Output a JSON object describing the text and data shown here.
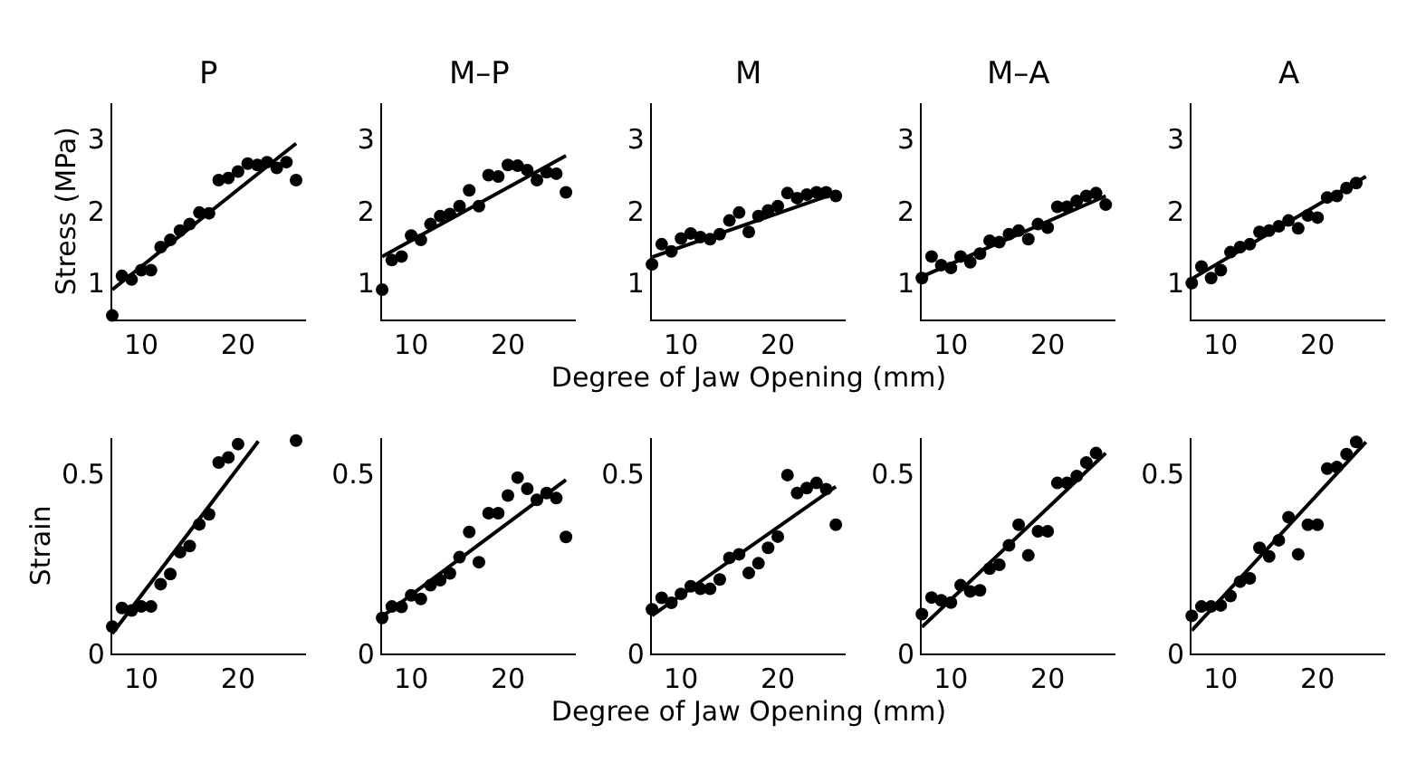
{
  "chart_data": [
    {
      "type": "scatter",
      "title": "P",
      "ylabel": "Stress (MPa)",
      "xlim": [
        7,
        27
      ],
      "ylim": [
        0.5,
        3.5
      ],
      "xticks": [
        10,
        20
      ],
      "yticks": [
        1,
        2,
        3
      ],
      "line_style": "solid",
      "series": [
        {
          "marker": "circle",
          "color": "#000000",
          "x": [
            7,
            8,
            9,
            10,
            11,
            12,
            13,
            14,
            15,
            16,
            17,
            18,
            19,
            20,
            21,
            22,
            23,
            24,
            25,
            26
          ],
          "values": [
            0.55,
            1.1,
            1.05,
            1.18,
            1.18,
            1.5,
            1.6,
            1.73,
            1.82,
            1.98,
            1.97,
            2.43,
            2.46,
            2.55,
            2.66,
            2.64,
            2.68,
            2.6,
            2.68,
            2.43
          ]
        },
        {
          "type": "line",
          "marker": "none",
          "color": "#000000",
          "x": [
            7,
            26
          ],
          "values": [
            0.91,
            2.94
          ]
        }
      ]
    },
    {
      "type": "scatter",
      "title": "M–P",
      "xlim": [
        7,
        27
      ],
      "ylim": [
        0.5,
        3.5
      ],
      "xticks": [
        10,
        20
      ],
      "yticks": [
        1,
        2,
        3
      ],
      "line_style": "solid",
      "series": [
        {
          "marker": "circle",
          "color": "#000000",
          "x": [
            7,
            8,
            9,
            10,
            11,
            12,
            13,
            14,
            15,
            16,
            17,
            18,
            19,
            20,
            21,
            22,
            23,
            24,
            25,
            26
          ],
          "values": [
            0.91,
            1.32,
            1.37,
            1.66,
            1.6,
            1.82,
            1.93,
            1.96,
            2.07,
            2.29,
            2.07,
            2.5,
            2.48,
            2.64,
            2.63,
            2.57,
            2.43,
            2.54,
            2.52,
            2.26
          ]
        },
        {
          "type": "line",
          "marker": "none",
          "color": "#000000",
          "x": [
            7,
            26
          ],
          "values": [
            1.37,
            2.77
          ]
        }
      ]
    },
    {
      "type": "scatter",
      "title": "M",
      "xlabel": "Degree of Jaw Opening (mm)",
      "xlim": [
        7,
        27
      ],
      "ylim": [
        0.5,
        3.5
      ],
      "xticks": [
        10,
        20
      ],
      "yticks": [
        1,
        2,
        3
      ],
      "line_style": "solid",
      "series": [
        {
          "marker": "circle",
          "color": "#000000",
          "x": [
            7,
            8,
            9,
            10,
            11,
            12,
            13,
            14,
            15,
            16,
            17,
            18,
            19,
            20,
            21,
            22,
            23,
            24,
            25,
            26
          ],
          "values": [
            1.26,
            1.54,
            1.44,
            1.62,
            1.69,
            1.64,
            1.61,
            1.68,
            1.87,
            1.98,
            1.71,
            1.93,
            2.01,
            2.07,
            2.25,
            2.18,
            2.23,
            2.26,
            2.26,
            2.21
          ]
        },
        {
          "type": "line",
          "marker": "none",
          "color": "#000000",
          "x": [
            7,
            26
          ],
          "values": [
            1.36,
            2.25
          ]
        }
      ]
    },
    {
      "type": "scatter",
      "title": "M–A",
      "xlim": [
        7,
        27
      ],
      "ylim": [
        0.5,
        3.5
      ],
      "xticks": [
        10,
        20
      ],
      "yticks": [
        1,
        2,
        3
      ],
      "line_style": "solid",
      "series": [
        {
          "marker": "circle",
          "color": "#000000",
          "x": [
            7,
            8,
            9,
            10,
            11,
            12,
            13,
            14,
            15,
            16,
            17,
            18,
            19,
            20,
            21,
            22,
            23,
            24,
            25,
            26
          ],
          "values": [
            1.07,
            1.37,
            1.25,
            1.21,
            1.37,
            1.29,
            1.41,
            1.59,
            1.57,
            1.68,
            1.73,
            1.61,
            1.82,
            1.77,
            2.06,
            2.06,
            2.14,
            2.21,
            2.25,
            2.09
          ]
        },
        {
          "type": "line",
          "marker": "none",
          "color": "#000000",
          "x": [
            7,
            26
          ],
          "values": [
            1.09,
            2.21
          ]
        }
      ]
    },
    {
      "type": "scatter",
      "title": "A",
      "xlim": [
        7,
        27
      ],
      "ylim": [
        0.5,
        3.5
      ],
      "xticks": [
        10,
        20
      ],
      "yticks": [
        1,
        2,
        3
      ],
      "line_style": "solid",
      "series": [
        {
          "marker": "circle",
          "color": "#000000",
          "x": [
            7,
            8,
            9,
            10,
            11,
            12,
            13,
            14,
            15,
            16,
            17,
            18,
            19,
            20,
            21,
            22,
            23,
            24
          ],
          "values": [
            1.0,
            1.23,
            1.07,
            1.18,
            1.43,
            1.5,
            1.54,
            1.71,
            1.73,
            1.79,
            1.87,
            1.76,
            1.94,
            1.91,
            2.19,
            2.21,
            2.32,
            2.39
          ]
        },
        {
          "type": "line",
          "marker": "none",
          "color": "#000000",
          "x": [
            7,
            25
          ],
          "values": [
            1.06,
            2.48
          ]
        }
      ]
    },
    {
      "type": "scatter",
      "ylabel": "Strain",
      "xlim": [
        7,
        27
      ],
      "ylim": [
        0,
        0.6
      ],
      "xticks": [
        10,
        20
      ],
      "yticks": [
        0,
        0.5
      ],
      "line_style": "solid",
      "series": [
        {
          "marker": "circle",
          "color": "#000000",
          "x": [
            7,
            8,
            9,
            10,
            11,
            12,
            13,
            14,
            15,
            16,
            17,
            18,
            19,
            20,
            21,
            22,
            23,
            24,
            25,
            26
          ],
          "values": [
            0.075,
            0.127,
            0.12,
            0.131,
            0.131,
            0.193,
            0.221,
            0.282,
            0.299,
            0.359,
            0.387,
            0.531,
            0.545,
            0.582,
            null,
            null,
            null,
            null,
            null,
            0.592
          ]
        },
        {
          "type": "line",
          "marker": "none",
          "color": "#000000",
          "x": [
            7,
            22.1
          ],
          "values": [
            0.056,
            0.59
          ]
        }
      ]
    },
    {
      "type": "scatter",
      "xlim": [
        7,
        27
      ],
      "ylim": [
        0,
        0.6
      ],
      "xticks": [
        10,
        20
      ],
      "yticks": [
        0,
        0.5
      ],
      "line_style": "solid",
      "series": [
        {
          "marker": "circle",
          "color": "#000000",
          "x": [
            7,
            8,
            9,
            10,
            11,
            12,
            13,
            14,
            15,
            16,
            17,
            18,
            19,
            20,
            21,
            22,
            23,
            24,
            25,
            26
          ],
          "values": [
            0.099,
            0.131,
            0.13,
            0.162,
            0.152,
            0.19,
            0.204,
            0.223,
            0.268,
            0.338,
            0.254,
            0.39,
            0.39,
            0.439,
            0.489,
            0.458,
            0.427,
            0.446,
            0.432,
            0.324
          ]
        },
        {
          "type": "line",
          "marker": "none",
          "color": "#000000",
          "x": [
            7,
            26
          ],
          "values": [
            0.103,
            0.483
          ]
        }
      ]
    },
    {
      "type": "scatter",
      "xlabel": "Degree of Jaw Opening (mm)",
      "xlim": [
        7,
        27
      ],
      "ylim": [
        0,
        0.6
      ],
      "xticks": [
        10,
        20
      ],
      "yticks": [
        0,
        0.5
      ],
      "line_style": "solid",
      "series": [
        {
          "marker": "circle",
          "color": "#000000",
          "x": [
            7,
            8,
            9,
            10,
            11,
            12,
            13,
            14,
            15,
            16,
            17,
            18,
            19,
            20,
            21,
            22,
            23,
            24,
            25,
            26
          ],
          "values": [
            0.123,
            0.155,
            0.141,
            0.166,
            0.187,
            0.18,
            0.18,
            0.206,
            0.266,
            0.276,
            0.224,
            0.251,
            0.294,
            0.325,
            0.496,
            0.446,
            0.46,
            0.474,
            0.457,
            0.358
          ]
        },
        {
          "type": "line",
          "marker": "none",
          "color": "#000000",
          "x": [
            7,
            26
          ],
          "values": [
            0.106,
            0.464
          ]
        }
      ]
    },
    {
      "type": "scatter",
      "xlim": [
        7,
        27
      ],
      "ylim": [
        0,
        0.6
      ],
      "xticks": [
        10,
        20
      ],
      "yticks": [
        0,
        0.5
      ],
      "line_style": "solid",
      "series": [
        {
          "marker": "circle",
          "color": "#000000",
          "x": [
            7,
            8,
            9,
            10,
            11,
            12,
            13,
            14,
            15,
            16,
            17,
            18,
            19,
            20,
            21,
            22,
            23,
            24,
            25
          ],
          "values": [
            0.11,
            0.156,
            0.148,
            0.142,
            0.19,
            0.173,
            0.176,
            0.236,
            0.247,
            0.301,
            0.358,
            0.273,
            0.34,
            0.34,
            0.474,
            0.474,
            0.493,
            0.531,
            0.557
          ]
        },
        {
          "type": "line",
          "marker": "none",
          "color": "#000000",
          "x": [
            7,
            26
          ],
          "values": [
            0.074,
            0.557
          ]
        }
      ]
    },
    {
      "type": "scatter",
      "xlim": [
        7,
        27
      ],
      "ylim": [
        0,
        0.6
      ],
      "xticks": [
        10,
        20
      ],
      "yticks": [
        0,
        0.5
      ],
      "line_style": "solid",
      "series": [
        {
          "marker": "circle",
          "color": "#000000",
          "x": [
            7,
            8,
            9,
            10,
            11,
            12,
            13,
            14,
            15,
            16,
            17,
            18,
            19,
            20,
            21,
            22,
            23,
            24
          ],
          "values": [
            0.105,
            0.131,
            0.131,
            0.134,
            0.16,
            0.2,
            0.209,
            0.294,
            0.27,
            0.315,
            0.379,
            0.276,
            0.358,
            0.358,
            0.514,
            0.518,
            0.554,
            0.588
          ]
        },
        {
          "type": "line",
          "marker": "none",
          "color": "#000000",
          "x": [
            7,
            25
          ],
          "values": [
            0.064,
            0.588
          ]
        }
      ]
    }
  ]
}
